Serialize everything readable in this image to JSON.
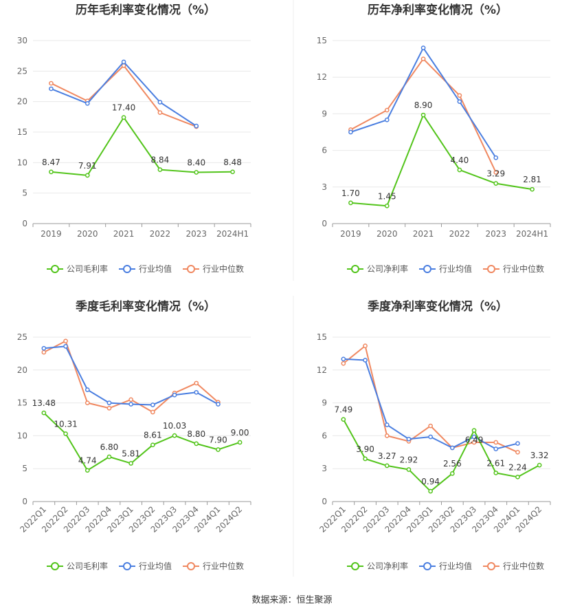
{
  "footer": "数据来源：恒生聚源",
  "colors": {
    "company": "#52c41a",
    "avg": "#4a7ee0",
    "median": "#f08860"
  },
  "chart_data": [
    {
      "type": "line",
      "title": "历年毛利率变化情况（%）",
      "categories": [
        "2019",
        "2020",
        "2021",
        "2022",
        "2023",
        "2024H1"
      ],
      "ylim": [
        0,
        30
      ],
      "yticks": [
        0,
        5,
        10,
        15,
        20,
        25,
        30
      ],
      "series": [
        {
          "name": "公司毛利率",
          "key": "company",
          "values": [
            8.47,
            7.91,
            17.4,
            8.84,
            8.4,
            8.48
          ],
          "labels": [
            "8.47",
            "7.91",
            "17.40",
            "8.84",
            "8.40",
            "8.48"
          ]
        },
        {
          "name": "行业均值",
          "key": "avg",
          "values": [
            22.1,
            19.7,
            26.5,
            19.9,
            16.0,
            null
          ]
        },
        {
          "name": "行业中位数",
          "key": "median",
          "values": [
            23.0,
            20.1,
            25.9,
            18.2,
            15.9,
            null
          ]
        }
      ]
    },
    {
      "type": "line",
      "title": "历年净利率变化情况（%）",
      "categories": [
        "2019",
        "2020",
        "2021",
        "2022",
        "2023",
        "2024H1"
      ],
      "ylim": [
        0,
        15
      ],
      "yticks": [
        0,
        3,
        6,
        9,
        12,
        15
      ],
      "series": [
        {
          "name": "公司净利率",
          "key": "company",
          "values": [
            1.7,
            1.45,
            8.9,
            4.4,
            3.29,
            2.81
          ],
          "labels": [
            "1.70",
            "1.45",
            "8.90",
            "4.40",
            "3.29",
            "2.81"
          ]
        },
        {
          "name": "行业均值",
          "key": "avg",
          "values": [
            7.5,
            8.5,
            14.4,
            10.0,
            5.4,
            null
          ]
        },
        {
          "name": "行业中位数",
          "key": "median",
          "values": [
            7.7,
            9.3,
            13.5,
            10.5,
            4.2,
            null
          ]
        }
      ]
    },
    {
      "type": "line",
      "title": "季度毛利率变化情况（%）",
      "categories": [
        "2022Q1",
        "2022Q2",
        "2022Q3",
        "2022Q4",
        "2023Q1",
        "2023Q2",
        "2023Q3",
        "2023Q4",
        "2024Q1",
        "2024Q2"
      ],
      "ylim": [
        0,
        25
      ],
      "yticks": [
        0,
        5,
        10,
        15,
        20,
        25
      ],
      "series": [
        {
          "name": "公司毛利率",
          "key": "company",
          "values": [
            13.48,
            10.31,
            4.74,
            6.8,
            5.81,
            8.61,
            10.03,
            8.8,
            7.9,
            9.0
          ],
          "labels": [
            "13.48",
            "10.31",
            "4.74",
            "6.80",
            "5.81",
            "8.61",
            "10.03",
            "8.80",
            "7.90",
            "9.00"
          ]
        },
        {
          "name": "行业均值",
          "key": "avg",
          "values": [
            23.3,
            23.6,
            17.0,
            15.0,
            14.8,
            14.7,
            16.2,
            16.6,
            14.8,
            null
          ]
        },
        {
          "name": "行业中位数",
          "key": "median",
          "values": [
            22.7,
            24.4,
            15.0,
            14.2,
            15.5,
            13.6,
            16.5,
            18.0,
            15.1,
            null
          ]
        }
      ]
    },
    {
      "type": "line",
      "title": "季度净利率变化情况（%）",
      "categories": [
        "2022Q1",
        "2022Q2",
        "2022Q3",
        "2022Q4",
        "2023Q1",
        "2023Q2",
        "2023Q3",
        "2023Q4",
        "2024Q1",
        "2024Q2"
      ],
      "ylim": [
        0,
        15
      ],
      "yticks": [
        0,
        3,
        6,
        9,
        12,
        15
      ],
      "series": [
        {
          "name": "公司净利率",
          "key": "company",
          "values": [
            7.49,
            3.9,
            3.27,
            2.92,
            0.94,
            2.56,
            6.49,
            2.61,
            2.24,
            3.32
          ],
          "labels": [
            "7.49",
            "3.90",
            "3.27",
            "2.92",
            "0.94",
            "2.56",
            "6.49",
            "2.61",
            "2.24",
            "3.32"
          ]
        },
        {
          "name": "行业均值",
          "key": "avg",
          "values": [
            13.0,
            12.9,
            7.0,
            5.7,
            5.9,
            4.9,
            5.9,
            4.8,
            5.3,
            null
          ]
        },
        {
          "name": "行业中位数",
          "key": "median",
          "values": [
            12.6,
            14.2,
            6.0,
            5.5,
            6.9,
            4.9,
            5.4,
            5.4,
            4.5,
            null
          ]
        }
      ]
    }
  ]
}
